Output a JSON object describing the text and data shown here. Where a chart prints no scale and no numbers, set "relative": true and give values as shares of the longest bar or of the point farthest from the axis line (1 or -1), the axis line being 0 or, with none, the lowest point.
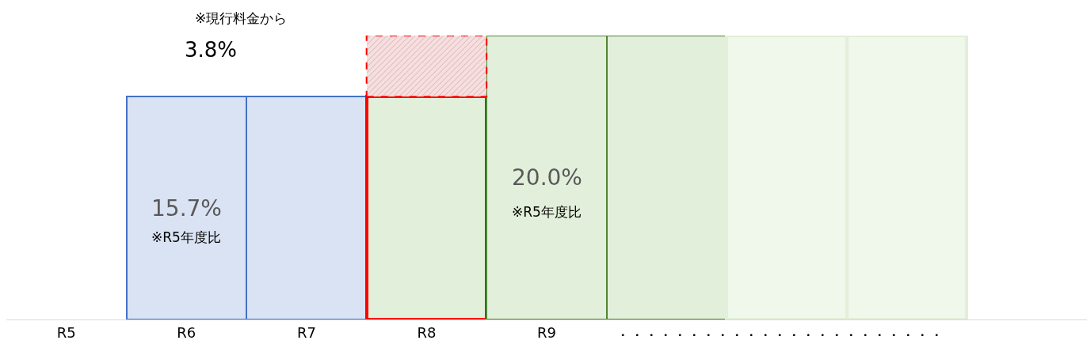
{
  "chart_data": {
    "type": "bar",
    "stacked": true,
    "relative": true,
    "categories": [
      "R5",
      "R6",
      "R7",
      "R8",
      "R9",
      null,
      null,
      null,
      null
    ],
    "series": [
      {
        "colors": [
          null,
          "#dae3f3",
          "#dae3f3",
          "#e2efda",
          "#e2efda",
          "#e2efda",
          "#f0f7eb",
          "#f0f7eb",
          null
        ],
        "values": [
          null,
          0.785,
          0.785,
          0.785,
          1,
          1,
          1,
          1,
          null
        ]
      },
      {
        "color": "#f8dede",
        "values": [
          null,
          null,
          null,
          0.215,
          null,
          null,
          null,
          null,
          null
        ]
      }
    ],
    "annotations": [
      "※現行料金から",
      "3.8%",
      "15.7%",
      "※R5年度比",
      "20.0%",
      "※R5年度比",
      "・・・・・・・・・・・・・・・・・・・・・・・"
    ]
  }
}
